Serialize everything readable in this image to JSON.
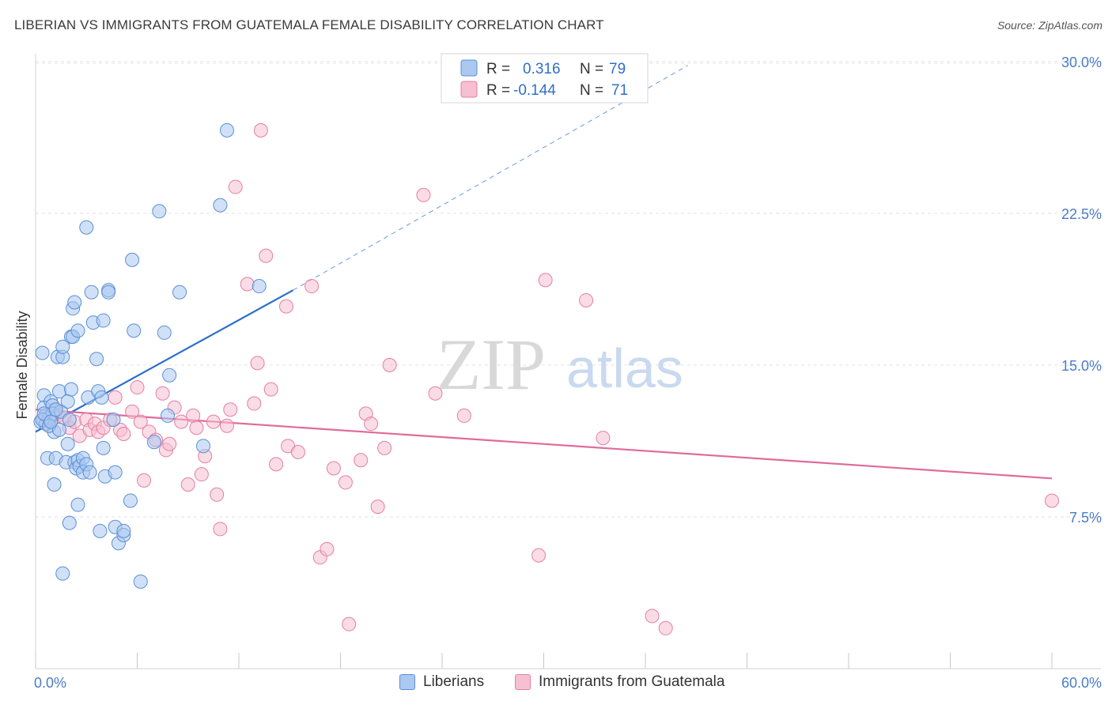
{
  "title": "LIBERIAN VS IMMIGRANTS FROM GUATEMALA FEMALE DISABILITY CORRELATION CHART",
  "source": "Source: ZipAtlas.com",
  "watermark": {
    "zip": "ZIP",
    "atlas": "atlas"
  },
  "colors": {
    "blue": "#5b8fd6",
    "blue_fill": "#aac8f0",
    "blue_line": "#2a6fcb",
    "pink": "#e57fa3",
    "pink_fill": "#f6bfd2",
    "pink_line": "#e06b97",
    "tick_label": "#4a7cc7",
    "grid": "#e3e3e3"
  },
  "legend_top": [
    {
      "r_label": "R =",
      "r_value": "0.316",
      "n_label": "N =",
      "n_value": "79"
    },
    {
      "r_label": "R =",
      "r_value": "-0.144",
      "n_label": "N =",
      "n_value": "71"
    }
  ],
  "chart_data": {
    "type": "scatter",
    "title": "LIBERIAN VS IMMIGRANTS FROM GUATEMALA FEMALE DISABILITY CORRELATION CHART",
    "xlabel": "",
    "ylabel": "Female Disability",
    "xlim": [
      0,
      60
    ],
    "ylim": [
      0,
      30.5
    ],
    "x_tick_labels": [
      "0.0%",
      "60.0%"
    ],
    "y_ticks": [
      7.5,
      15.0,
      22.5,
      30.0
    ],
    "y_tick_labels": [
      "7.5%",
      "15.0%",
      "22.5%",
      "30.0%"
    ],
    "grid": true,
    "legend_position": "bottom-center",
    "series": [
      {
        "name": "Liberians",
        "r": 0.316,
        "n": 79,
        "trend": {
          "x": [
            0,
            15.2
          ],
          "y": [
            11.7,
            18.7
          ],
          "dashed_to": [
            38.5,
            29.8
          ]
        },
        "points": [
          [
            0.3,
            12.2
          ],
          [
            0.4,
            15.6
          ],
          [
            0.5,
            13.5
          ],
          [
            0.5,
            12.9
          ],
          [
            0.6,
            12.5
          ],
          [
            0.6,
            12.1
          ],
          [
            0.7,
            10.4
          ],
          [
            0.8,
            12.4
          ],
          [
            0.9,
            13.2
          ],
          [
            1.0,
            13.0
          ],
          [
            1.0,
            12.6
          ],
          [
            1.1,
            9.1
          ],
          [
            1.1,
            11.7
          ],
          [
            1.2,
            10.4
          ],
          [
            1.3,
            15.4
          ],
          [
            1.4,
            13.7
          ],
          [
            1.5,
            12.7
          ],
          [
            1.6,
            15.4
          ],
          [
            1.6,
            15.9
          ],
          [
            1.6,
            4.7
          ],
          [
            1.8,
            10.2
          ],
          [
            1.9,
            13.2
          ],
          [
            1.9,
            11.1
          ],
          [
            2.0,
            7.2
          ],
          [
            2.0,
            12.3
          ],
          [
            2.1,
            13.8
          ],
          [
            2.1,
            16.4
          ],
          [
            2.2,
            16.4
          ],
          [
            2.2,
            17.8
          ],
          [
            2.3,
            18.1
          ],
          [
            2.3,
            10.2
          ],
          [
            2.4,
            9.9
          ],
          [
            2.5,
            10.3
          ],
          [
            2.5,
            16.7
          ],
          [
            2.5,
            8.1
          ],
          [
            2.6,
            10.0
          ],
          [
            2.8,
            9.7
          ],
          [
            2.8,
            10.4
          ],
          [
            3.0,
            21.8
          ],
          [
            3.0,
            10.1
          ],
          [
            3.1,
            13.4
          ],
          [
            3.2,
            9.7
          ],
          [
            3.3,
            18.6
          ],
          [
            3.4,
            17.1
          ],
          [
            3.6,
            15.3
          ],
          [
            3.7,
            13.7
          ],
          [
            3.8,
            6.8
          ],
          [
            3.9,
            13.4
          ],
          [
            4.0,
            17.2
          ],
          [
            4.0,
            10.9
          ],
          [
            4.1,
            9.5
          ],
          [
            4.3,
            18.7
          ],
          [
            4.3,
            18.6
          ],
          [
            4.6,
            12.3
          ],
          [
            4.7,
            9.7
          ],
          [
            4.7,
            7.0
          ],
          [
            4.9,
            6.2
          ],
          [
            5.2,
            6.6
          ],
          [
            5.2,
            6.8
          ],
          [
            5.6,
            8.3
          ],
          [
            5.7,
            20.2
          ],
          [
            5.8,
            16.7
          ],
          [
            6.2,
            4.3
          ],
          [
            7.0,
            11.2
          ],
          [
            7.3,
            22.6
          ],
          [
            7.6,
            16.6
          ],
          [
            7.8,
            12.5
          ],
          [
            7.9,
            14.5
          ],
          [
            8.5,
            18.6
          ],
          [
            9.9,
            11.0
          ],
          [
            10.9,
            22.9
          ],
          [
            11.3,
            26.6
          ],
          [
            13.2,
            18.9
          ],
          [
            0.4,
            12.3
          ],
          [
            0.8,
            12.0
          ],
          [
            1.4,
            11.8
          ],
          [
            0.5,
            12.6
          ],
          [
            0.9,
            12.2
          ],
          [
            1.2,
            12.8
          ]
        ]
      },
      {
        "name": "Immigrants from Guatemala",
        "r": -0.144,
        "n": 71,
        "trend": {
          "x": [
            0,
            60
          ],
          "y": [
            12.8,
            9.4
          ]
        },
        "points": [
          [
            0.5,
            12.3
          ],
          [
            0.8,
            12.0
          ],
          [
            1.1,
            12.8
          ],
          [
            1.3,
            12.5
          ],
          [
            1.7,
            12.4
          ],
          [
            2.0,
            11.9
          ],
          [
            2.3,
            12.2
          ],
          [
            2.6,
            11.5
          ],
          [
            3.0,
            12.3
          ],
          [
            3.2,
            11.8
          ],
          [
            3.5,
            12.1
          ],
          [
            3.7,
            11.7
          ],
          [
            4.0,
            11.9
          ],
          [
            4.4,
            12.3
          ],
          [
            4.7,
            13.4
          ],
          [
            5.0,
            11.8
          ],
          [
            5.2,
            11.6
          ],
          [
            5.7,
            12.7
          ],
          [
            6.0,
            13.9
          ],
          [
            6.2,
            12.2
          ],
          [
            6.4,
            9.3
          ],
          [
            6.7,
            11.7
          ],
          [
            7.1,
            11.3
          ],
          [
            7.5,
            13.6
          ],
          [
            7.7,
            10.8
          ],
          [
            7.9,
            11.1
          ],
          [
            8.2,
            12.9
          ],
          [
            8.6,
            12.2
          ],
          [
            9.0,
            9.1
          ],
          [
            9.3,
            12.5
          ],
          [
            9.5,
            11.9
          ],
          [
            9.8,
            9.6
          ],
          [
            10.0,
            10.5
          ],
          [
            10.5,
            12.2
          ],
          [
            10.7,
            8.6
          ],
          [
            10.9,
            6.9
          ],
          [
            11.3,
            12.0
          ],
          [
            11.5,
            12.8
          ],
          [
            11.8,
            23.8
          ],
          [
            12.5,
            19.0
          ],
          [
            12.9,
            13.1
          ],
          [
            13.1,
            15.1
          ],
          [
            13.3,
            26.6
          ],
          [
            13.6,
            20.4
          ],
          [
            13.9,
            13.8
          ],
          [
            14.2,
            10.1
          ],
          [
            14.8,
            17.9
          ],
          [
            14.9,
            11.0
          ],
          [
            15.5,
            10.7
          ],
          [
            16.3,
            18.9
          ],
          [
            16.8,
            5.5
          ],
          [
            17.2,
            5.9
          ],
          [
            17.6,
            9.9
          ],
          [
            18.3,
            9.2
          ],
          [
            18.5,
            2.2
          ],
          [
            19.2,
            10.3
          ],
          [
            19.5,
            12.6
          ],
          [
            19.8,
            12.1
          ],
          [
            20.2,
            8.0
          ],
          [
            20.6,
            10.9
          ],
          [
            20.9,
            15.0
          ],
          [
            22.9,
            23.4
          ],
          [
            23.6,
            13.6
          ],
          [
            25.3,
            12.5
          ],
          [
            29.7,
            5.6
          ],
          [
            30.1,
            19.2
          ],
          [
            32.5,
            18.2
          ],
          [
            33.5,
            11.4
          ],
          [
            36.4,
            2.6
          ],
          [
            37.2,
            2.0
          ],
          [
            60.0,
            8.3
          ]
        ]
      }
    ]
  }
}
